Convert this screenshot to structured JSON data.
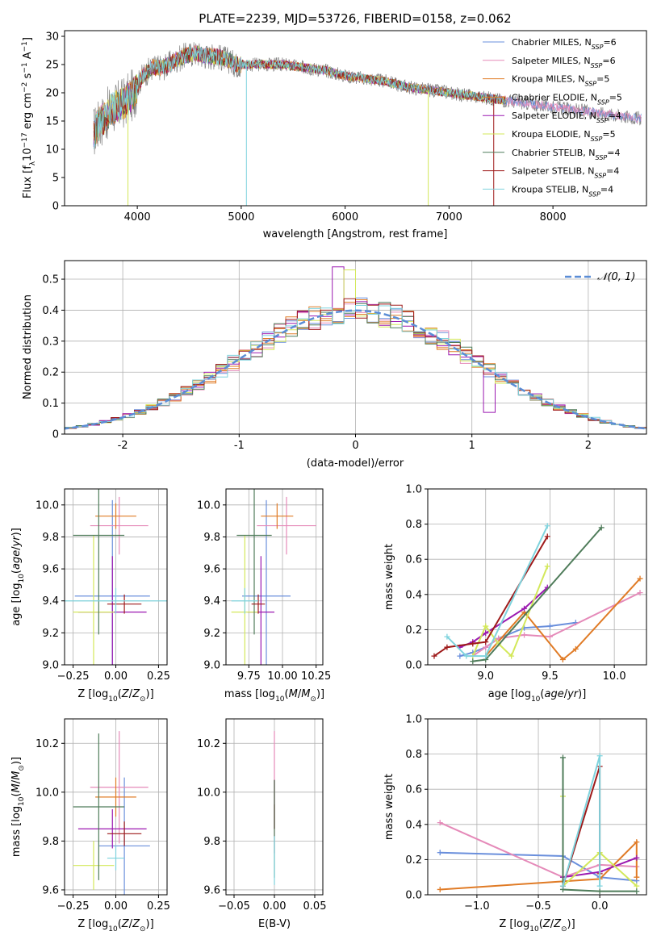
{
  "colors": {
    "Chabrier MILES": "#6a8fdc",
    "Salpeter MILES": "#e58ab9",
    "Kroupa MILES": "#e07b26",
    "Chabrier ELODIE": "#e07b26",
    "Salpeter ELODIE": "#9b18b0",
    "Kroupa ELODIE": "#d3e85a",
    "Chabrier STELIB": "#4f7c5a",
    "Salpeter STELIB": "#9e1a1a",
    "Kroupa STELIB": "#7fd3dd",
    "spectrum_gray": "#808080",
    "gaussian": "#5b8dd6"
  },
  "chart_data": [
    {
      "type": "line",
      "title": "PLATE=2239, MJD=53726, FIBERID=0158, z=0.062",
      "xlabel": "wavelength [Angstrom, rest frame]",
      "ylabel": "Flux [f_λ10^-17 erg cm^-2 s^-1 A^-1]",
      "xlim": [
        3300,
        8900
      ],
      "ylim": [
        0,
        31
      ],
      "xticks": [
        4000,
        5000,
        6000,
        7000,
        8000
      ],
      "yticks": [
        0,
        5,
        10,
        15,
        20,
        25,
        30
      ],
      "legend_position": "top-right",
      "legend": [
        {
          "label": "Chabrier MILES, N",
          "sub": "SSP",
          "val": "=6"
        },
        {
          "label": "Salpeter MILES, N",
          "sub": "SSP",
          "val": "=6"
        },
        {
          "label": "Kroupa MILES, N",
          "sub": "SSP",
          "val": "=5"
        },
        {
          "label": "Chabrier ELODIE, N",
          "sub": "SSP",
          "val": "=5"
        },
        {
          "label": "Salpeter ELODIE, N",
          "sub": "SSP",
          "val": "=4"
        },
        {
          "label": "Kroupa ELODIE, N",
          "sub": "SSP",
          "val": "=5"
        },
        {
          "label": "Chabrier STELIB, N",
          "sub": "SSP",
          "val": "=4"
        },
        {
          "label": "Salpeter STELIB, N",
          "sub": "SSP",
          "val": "=4"
        },
        {
          "label": "Kroupa STELIB, N",
          "sub": "SSP",
          "val": "=4"
        }
      ],
      "spectrum_envelope": {
        "wavelength": [
          3580,
          3650,
          3750,
          3850,
          3950,
          4050,
          4150,
          4250,
          4350,
          4450,
          4550,
          4650,
          4750,
          4850,
          4950,
          5050,
          5200,
          5400,
          5600,
          5800,
          6000,
          6200,
          6400,
          6600,
          6800,
          7000,
          7200,
          7400,
          7600,
          7800,
          8000,
          8200,
          8400,
          8600,
          8800
        ],
        "flux": [
          13,
          15,
          17,
          18,
          19.5,
          23,
          24.5,
          24.5,
          25.5,
          26.5,
          27,
          26.5,
          26.5,
          26,
          25,
          25,
          25,
          25,
          24.5,
          24,
          23,
          22.5,
          22,
          21,
          20.5,
          20,
          19.5,
          19,
          18.5,
          18,
          17.5,
          17,
          16.5,
          16,
          15.5
        ]
      }
    },
    {
      "type": "bar",
      "subtype": "histogram",
      "xlabel": "(data-model)/error",
      "ylabel": "Normed distribution",
      "xlim": [
        -2.5,
        2.5
      ],
      "ylim": [
        0,
        0.56
      ],
      "xticks": [
        -2,
        -1,
        0,
        1,
        2
      ],
      "yticks": [
        0.0,
        0.1,
        0.2,
        0.3,
        0.4,
        0.5
      ],
      "legend": [
        {
          "label": "𝒩(0, 1)"
        }
      ],
      "legend_position": "top-right",
      "grid": true,
      "bin_width": 0.1
    },
    {
      "type": "scatter",
      "xlabel": "Z [log10(Z/Z⊙)]",
      "ylabel": "age  [log10(age/yr)]",
      "xlim": [
        -0.3,
        0.3
      ],
      "ylim": [
        9.0,
        10.1
      ],
      "xticks": [
        -0.25,
        0.0,
        0.25
      ],
      "yticks": [
        9.0,
        9.2,
        9.4,
        9.6,
        9.8,
        10.0
      ],
      "xticklabels": [
        "−0.25",
        "0.00",
        "0.25"
      ],
      "yticklabels": [
        "9.0",
        "9.2",
        "9.4",
        "9.6",
        "9.8",
        "10.0"
      ],
      "grid": true,
      "errorbars": [
        {
          "s": "Chabrier MILES",
          "x": -0.02,
          "y": 9.43,
          "xerr": 0.22,
          "yerr": 0.6
        },
        {
          "s": "Salpeter MILES",
          "x": 0.02,
          "y": 9.87,
          "xerr": 0.17,
          "yerr": 0.18
        },
        {
          "s": "Kroupa MILES",
          "x": 0.0,
          "y": 9.93,
          "xerr": 0.12,
          "yerr": 0.08
        },
        {
          "s": "Salpeter ELODIE",
          "x": -0.02,
          "y": 9.33,
          "xerr": 0.2,
          "yerr": 0.35
        },
        {
          "s": "Kroupa ELODIE",
          "x": -0.13,
          "y": 9.33,
          "xerr": 0.12,
          "yerr": 0.48
        },
        {
          "s": "Chabrier STELIB",
          "x": -0.1,
          "y": 9.81,
          "xerr": 0.15,
          "yerr": 0.62
        },
        {
          "s": "Salpeter STELIB",
          "x": 0.05,
          "y": 9.38,
          "xerr": 0.1,
          "yerr": 0.06
        },
        {
          "s": "Kroupa STELIB",
          "x": 0.0,
          "y": 9.4,
          "xerr": 0.3,
          "yerr": 0.08
        }
      ]
    },
    {
      "type": "scatter",
      "xlabel": "mass [log10(M/M⊙)]",
      "xlim": [
        9.58,
        10.3
      ],
      "ylim": [
        9.0,
        10.1
      ],
      "xticks": [
        9.75,
        10.0,
        10.25
      ],
      "yticks": [
        9.0,
        9.2,
        9.4,
        9.6,
        9.8,
        10.0
      ],
      "xticklabels": [
        "9.75",
        "10.00",
        "10.25"
      ],
      "yticklabels": [
        "9.0",
        "9.2",
        "9.4",
        "9.6",
        "9.8",
        "10.0"
      ],
      "grid": true,
      "errorbars": [
        {
          "s": "Chabrier MILES",
          "x": 9.88,
          "y": 9.43,
          "xerr": 0.18,
          "yerr": 0.6
        },
        {
          "s": "Salpeter MILES",
          "x": 10.03,
          "y": 9.87,
          "xerr": 0.22,
          "yerr": 0.18
        },
        {
          "s": "Kroupa MILES",
          "x": 9.96,
          "y": 9.93,
          "xerr": 0.12,
          "yerr": 0.08
        },
        {
          "s": "Salpeter ELODIE",
          "x": 9.84,
          "y": 9.33,
          "xerr": 0.1,
          "yerr": 0.35
        },
        {
          "s": "Kroupa ELODIE",
          "x": 9.72,
          "y": 9.33,
          "xerr": 0.1,
          "yerr": 0.48
        },
        {
          "s": "Chabrier STELIB",
          "x": 9.79,
          "y": 9.81,
          "xerr": 0.13,
          "yerr": 0.62
        },
        {
          "s": "Salpeter STELIB",
          "x": 9.82,
          "y": 9.38,
          "xerr": 0.05,
          "yerr": 0.06
        },
        {
          "s": "Kroupa STELIB",
          "x": 9.72,
          "y": 9.4,
          "xerr": 0.1,
          "yerr": 0.08
        }
      ]
    },
    {
      "type": "line",
      "xlabel": "age  [log10(age/yr)]",
      "ylabel": "mass weight",
      "xlim": [
        8.55,
        10.25
      ],
      "ylim": [
        0,
        1.0
      ],
      "xticks": [
        9.0,
        9.5,
        10.0
      ],
      "yticks": [
        0.0,
        0.2,
        0.4,
        0.6,
        0.8,
        1.0
      ],
      "xticklabels": [
        "9.0",
        "9.5",
        "10.0"
      ],
      "yticklabels": [
        "0.0",
        "0.2",
        "0.4",
        "0.6",
        "0.8",
        "1.0"
      ],
      "grid": true,
      "series": [
        {
          "s": "Chabrier MILES",
          "x": [
            8.8,
            8.9,
            9.0,
            9.1,
            9.3,
            9.5,
            9.7
          ],
          "y": [
            0.05,
            0.07,
            0.1,
            0.15,
            0.21,
            0.22,
            0.24
          ]
        },
        {
          "s": "Salpeter MILES",
          "x": [
            8.9,
            9.0,
            9.1,
            9.3,
            9.5,
            10.2
          ],
          "y": [
            0.05,
            0.1,
            0.15,
            0.17,
            0.16,
            0.41
          ]
        },
        {
          "s": "Kroupa MILES",
          "x": [
            9.0,
            9.3,
            9.6,
            9.7,
            10.2
          ],
          "y": [
            0.05,
            0.3,
            0.03,
            0.09,
            0.49
          ]
        },
        {
          "s": "Salpeter ELODIE",
          "x": [
            8.8,
            8.9,
            9.0,
            9.3,
            9.48
          ],
          "y": [
            0.1,
            0.13,
            0.18,
            0.32,
            0.44
          ]
        },
        {
          "s": "Kroupa ELODIE",
          "x": [
            8.9,
            9.0,
            9.1,
            9.2,
            9.48
          ],
          "y": [
            0.05,
            0.22,
            0.12,
            0.05,
            0.56
          ]
        },
        {
          "s": "Chabrier STELIB",
          "x": [
            8.9,
            9.0,
            9.9
          ],
          "y": [
            0.02,
            0.03,
            0.78
          ]
        },
        {
          "s": "Salpeter STELIB",
          "x": [
            8.6,
            8.7,
            8.9,
            9.0,
            9.48
          ],
          "y": [
            0.05,
            0.1,
            0.12,
            0.13,
            0.73
          ]
        },
        {
          "s": "Kroupa STELIB",
          "x": [
            8.7,
            8.85,
            9.0,
            9.48
          ],
          "y": [
            0.16,
            0.05,
            0.05,
            0.79
          ]
        }
      ]
    },
    {
      "type": "scatter",
      "xlabel": "Z [log10(Z/Z⊙)]",
      "ylabel": "mass [log10(M/M⊙)]",
      "xlim": [
        -0.3,
        0.3
      ],
      "ylim": [
        9.58,
        10.3
      ],
      "xticks": [
        -0.25,
        0.0,
        0.25
      ],
      "yticks": [
        9.6,
        9.8,
        10.0,
        10.2
      ],
      "xticklabels": [
        "−0.25",
        "0.00",
        "0.25"
      ],
      "yticklabels": [
        "9.6",
        "9.8",
        "10.0",
        "10.2"
      ],
      "grid": true,
      "errorbars": [
        {
          "s": "Chabrier MILES",
          "x": 0.05,
          "y": 9.78,
          "xerr": 0.15,
          "yerr": 0.28
        },
        {
          "s": "Salpeter MILES",
          "x": 0.02,
          "y": 10.02,
          "xerr": 0.17,
          "yerr": 0.23
        },
        {
          "s": "Kroupa MILES",
          "x": 0.0,
          "y": 9.98,
          "xerr": 0.12,
          "yerr": 0.08
        },
        {
          "s": "Salpeter ELODIE",
          "x": -0.02,
          "y": 9.85,
          "xerr": 0.2,
          "yerr": 0.08
        },
        {
          "s": "Kroupa ELODIE",
          "x": -0.13,
          "y": 9.7,
          "xerr": 0.12,
          "yerr": 0.1
        },
        {
          "s": "Chabrier STELIB",
          "x": -0.1,
          "y": 9.94,
          "xerr": 0.15,
          "yerr": 0.3
        },
        {
          "s": "Salpeter STELIB",
          "x": 0.05,
          "y": 9.83,
          "xerr": 0.1,
          "yerr": 0.05
        },
        {
          "s": "Kroupa STELIB",
          "x": 0.0,
          "y": 9.73,
          "xerr": 0.05,
          "yerr": 0.05
        }
      ]
    },
    {
      "type": "scatter",
      "xlabel": "E(B-V)",
      "xlim": [
        -0.06,
        0.06
      ],
      "ylim": [
        9.58,
        10.3
      ],
      "xticks": [
        -0.05,
        0.0,
        0.05
      ],
      "yticks": [
        9.6,
        9.8,
        10.0,
        10.2
      ],
      "xticklabels": [
        "−0.05",
        "0.00",
        "0.05"
      ],
      "yticklabels": [
        "9.6",
        "9.8",
        "10.0",
        "10.2"
      ],
      "grid": true,
      "errorbars": [
        {
          "s": "Salpeter MILES",
          "x": 0.0,
          "y": 10.0,
          "xerr": 0.0,
          "yerr": 0.25
        },
        {
          "s": "Kroupa MILES",
          "x": 0.0,
          "y": 9.95,
          "xerr": 0.0,
          "yerr": 0.1
        },
        {
          "s": "Salpeter ELODIE",
          "x": 0.0,
          "y": 9.95,
          "xerr": 0.0,
          "yerr": 0.1
        },
        {
          "s": "Salpeter STELIB",
          "x": 0.0,
          "y": 9.9,
          "xerr": 0.0,
          "yerr": 0.05
        },
        {
          "s": "Chabrier STELIB",
          "x": 0.0,
          "y": 9.85,
          "xerr": 0.0,
          "yerr": 0.2
        },
        {
          "s": "Kroupa STELIB",
          "x": 0.0,
          "y": 9.72,
          "xerr": 0.0,
          "yerr": 0.1
        }
      ]
    },
    {
      "type": "line",
      "xlabel": "Z [log10(Z/Z⊙)]",
      "ylabel": "mass weight",
      "xlim": [
        -1.4,
        0.38
      ],
      "ylim": [
        0,
        1.0
      ],
      "xticks": [
        -1.0,
        -0.5,
        0.0
      ],
      "yticks": [
        0.0,
        0.2,
        0.4,
        0.6,
        0.8,
        1.0
      ],
      "xticklabels": [
        "−1.0",
        "−0.5",
        "0.0"
      ],
      "yticklabels": [
        "0.0",
        "0.2",
        "0.4",
        "0.6",
        "0.8",
        "1.0"
      ],
      "grid": true,
      "series": [
        {
          "s": "Chabrier MILES",
          "x": [
            -1.3,
            -0.3,
            0.0,
            0.3
          ],
          "y": [
            0.24,
            0.22,
            0.1,
            0.08
          ]
        },
        {
          "s": "Salpeter MILES",
          "x": [
            -1.3,
            -0.3,
            0.0,
            0.3
          ],
          "y": [
            0.41,
            0.1,
            0.17,
            0.16
          ]
        },
        {
          "s": "Kroupa MILES",
          "x": [
            -1.3,
            0.0,
            0.3,
            0.3
          ],
          "y": [
            0.03,
            0.09,
            0.3,
            0.1
          ]
        },
        {
          "s": "Salpeter ELODIE",
          "x": [
            -0.3,
            0.0,
            0.3
          ],
          "y": [
            0.1,
            0.13,
            0.21
          ]
        },
        {
          "s": "Kroupa ELODIE",
          "x": [
            -0.3,
            -0.3,
            0.0,
            0.3
          ],
          "y": [
            0.56,
            0.05,
            0.24,
            0.05
          ]
        },
        {
          "s": "Chabrier STELIB",
          "x": [
            -0.3,
            -0.3,
            0.0,
            0.3
          ],
          "y": [
            0.78,
            0.03,
            0.02,
            0.02
          ]
        },
        {
          "s": "Salpeter STELIB",
          "x": [
            -0.3,
            0.0,
            0.0
          ],
          "y": [
            0.05,
            0.73,
            0.12
          ]
        },
        {
          "s": "Kroupa STELIB",
          "x": [
            -0.3,
            0.0,
            0.0
          ],
          "y": [
            0.05,
            0.79,
            0.05
          ]
        }
      ]
    }
  ]
}
